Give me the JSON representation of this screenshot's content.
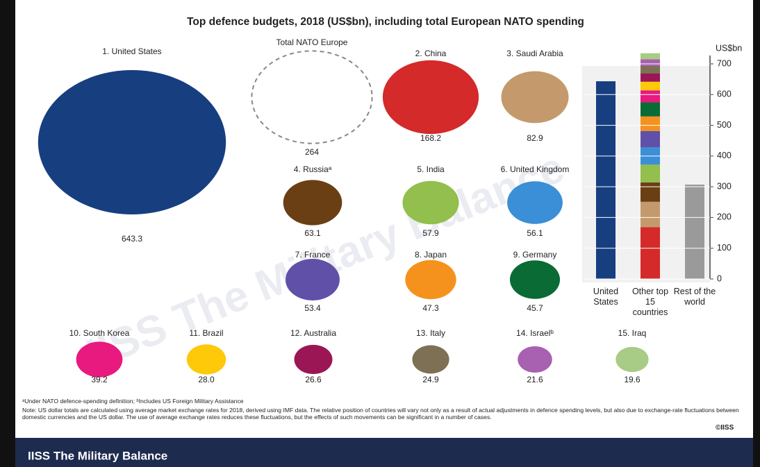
{
  "title": "Top defence budgets, 2018 (US$bn), including total European NATO spending",
  "chart_data": [
    {
      "type": "bubble",
      "categories": [
        "1. United States",
        "2. China",
        "3. Saudi Arabia",
        "4. Russiaᵃ",
        "5. India",
        "6. United Kingdom",
        "7. France",
        "8. Japan",
        "9. Germany",
        "10. South Korea",
        "11. Brazil",
        "12. Australia",
        "13. Italy",
        "14. Israelᵇ",
        "15. Iraq"
      ],
      "values": [
        643.3,
        168.2,
        82.9,
        63.1,
        57.9,
        56.1,
        53.4,
        47.3,
        45.7,
        39.2,
        28.0,
        26.6,
        24.9,
        21.6,
        19.6
      ],
      "value_labels": [
        "643.3",
        "168.2",
        "82.9",
        "63.1",
        "57.9",
        "56.1",
        "53.4",
        "47.3",
        "45.7",
        "39.2",
        "28.0",
        "26.6",
        "24.9",
        "21.6",
        "19.6"
      ],
      "colors": [
        "#173f80",
        "#d42a2a",
        "#c49a6c",
        "#6b3f14",
        "#92bf4d",
        "#3a8fd6",
        "#6050a8",
        "#f5921e",
        "#0a6b34",
        "#e8197f",
        "#fdc908",
        "#9a1655",
        "#7d7055",
        "#a860b0",
        "#a8cb85"
      ],
      "reference_label": "Total NATO Europe",
      "reference_value": 264
    },
    {
      "type": "stacked_bar",
      "categories": [
        "United States",
        "Other top 15 countries",
        "Rest of the world"
      ],
      "rest_value": 307,
      "rest_color": "#9a9a9a",
      "ylabel": "US$bn",
      "ylim": [
        0,
        740
      ],
      "yticks": [
        0,
        100,
        200,
        300,
        400,
        500,
        600,
        700
      ],
      "grid": true
    }
  ],
  "footnote": "ᵃUnder NATO defence-spending definition; ᵇIncludes US Foreign Military Assistance",
  "note": "Note: US dollar totals are calculated using average market exchange rates for 2018, derived using IMF data. The relative position of countries will vary not only as a result of actual adjustments in defence spending levels, but also due to exchange-rate fluctuations between domestic currencies and the US dollar. The use of average exchange rates reduces these fluctuations, but the effects of such movements can be significant in a number of cases.",
  "copyright": "©IISS",
  "brand": "IISS The Military Balance"
}
